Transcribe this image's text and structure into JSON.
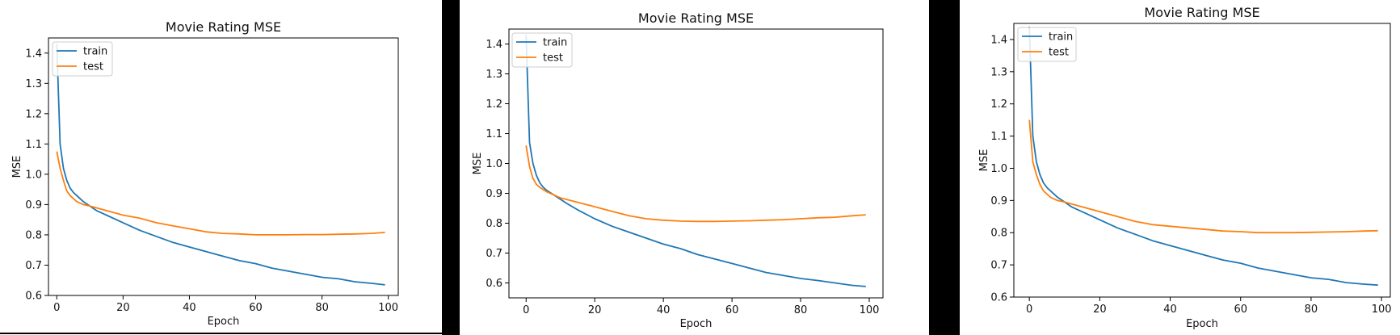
{
  "colors": {
    "train": "#1f77b4",
    "test": "#ff7f0e",
    "background": "#ffffff",
    "separator": "#000000"
  },
  "chart_data": [
    {
      "type": "line",
      "title": "Movie Rating MSE",
      "xlabel": "Epoch",
      "ylabel": "MSE",
      "xlim": [
        -2.5,
        103
      ],
      "ylim": [
        0.6,
        1.45
      ],
      "xticks": [
        0,
        20,
        40,
        60,
        80,
        100
      ],
      "xtick_labels": [
        "0",
        "20",
        "40",
        "60",
        "80",
        "100"
      ],
      "yticks": [
        0.6,
        0.7,
        0.8,
        0.9,
        1.0,
        1.1,
        1.2,
        1.3,
        1.4
      ],
      "ytick_labels": [
        "0.6",
        "0.7",
        "0.8",
        "0.9",
        "1.0",
        "1.1",
        "1.2",
        "1.3",
        "1.4"
      ],
      "legend": "upper left",
      "grid": false,
      "series": [
        {
          "name": "train",
          "color": "#1f77b4",
          "x": [
            0,
            1,
            2,
            3,
            4,
            5,
            6,
            8,
            10,
            12,
            15,
            20,
            25,
            30,
            35,
            40,
            45,
            50,
            55,
            60,
            65,
            70,
            75,
            80,
            85,
            90,
            95,
            99
          ],
          "y": [
            1.43,
            1.1,
            1.02,
            0.98,
            0.955,
            0.94,
            0.93,
            0.91,
            0.895,
            0.88,
            0.865,
            0.84,
            0.815,
            0.795,
            0.775,
            0.76,
            0.745,
            0.73,
            0.715,
            0.705,
            0.69,
            0.68,
            0.67,
            0.66,
            0.655,
            0.645,
            0.64,
            0.635
          ]
        },
        {
          "name": "test",
          "color": "#ff7f0e",
          "x": [
            0,
            1,
            2,
            3,
            4,
            6,
            8,
            10,
            15,
            20,
            25,
            30,
            35,
            40,
            45,
            50,
            55,
            60,
            65,
            70,
            75,
            80,
            85,
            90,
            95,
            99
          ],
          "y": [
            1.075,
            1.02,
            0.98,
            0.945,
            0.93,
            0.91,
            0.9,
            0.895,
            0.88,
            0.865,
            0.855,
            0.84,
            0.83,
            0.82,
            0.81,
            0.805,
            0.803,
            0.8,
            0.8,
            0.8,
            0.801,
            0.801,
            0.802,
            0.803,
            0.805,
            0.808
          ]
        }
      ]
    },
    {
      "type": "line",
      "title": "Movie Rating MSE",
      "xlabel": "Epoch",
      "ylabel": "MSE",
      "xlim": [
        -5,
        104
      ],
      "ylim": [
        0.55,
        1.45
      ],
      "xticks": [
        0,
        20,
        40,
        60,
        80,
        100
      ],
      "xtick_labels": [
        "0",
        "20",
        "40",
        "60",
        "80",
        "100"
      ],
      "yticks": [
        0.6,
        0.7,
        0.8,
        0.9,
        1.0,
        1.1,
        1.2,
        1.3,
        1.4
      ],
      "ytick_labels": [
        "0.6",
        "0.7",
        "0.8",
        "0.9",
        "1.0",
        "1.1",
        "1.2",
        "1.3",
        "1.4"
      ],
      "legend": "upper left",
      "grid": false,
      "series": [
        {
          "name": "train",
          "color": "#1f77b4",
          "x": [
            0,
            1,
            2,
            3,
            4,
            5,
            6,
            8,
            10,
            12,
            15,
            20,
            25,
            30,
            35,
            40,
            45,
            50,
            55,
            60,
            65,
            70,
            75,
            80,
            85,
            90,
            95,
            99
          ],
          "y": [
            1.43,
            1.07,
            1.0,
            0.96,
            0.935,
            0.92,
            0.91,
            0.895,
            0.88,
            0.865,
            0.845,
            0.815,
            0.79,
            0.77,
            0.75,
            0.73,
            0.715,
            0.695,
            0.68,
            0.665,
            0.65,
            0.635,
            0.625,
            0.615,
            0.608,
            0.6,
            0.592,
            0.588
          ]
        },
        {
          "name": "test",
          "color": "#ff7f0e",
          "x": [
            0,
            1,
            2,
            3,
            4,
            6,
            8,
            10,
            15,
            20,
            25,
            30,
            35,
            40,
            45,
            50,
            55,
            60,
            65,
            70,
            75,
            80,
            85,
            90,
            95,
            99
          ],
          "y": [
            1.06,
            0.99,
            0.95,
            0.93,
            0.92,
            0.905,
            0.895,
            0.885,
            0.87,
            0.855,
            0.84,
            0.825,
            0.815,
            0.81,
            0.807,
            0.806,
            0.806,
            0.807,
            0.808,
            0.81,
            0.812,
            0.815,
            0.818,
            0.82,
            0.825,
            0.828
          ]
        }
      ]
    },
    {
      "type": "line",
      "title": "Movie Rating MSE",
      "xlabel": "Epoch",
      "ylabel": "MSE",
      "xlim": [
        -4.4,
        102.5
      ],
      "ylim": [
        0.6,
        1.45
      ],
      "xticks": [
        0,
        20,
        40,
        60,
        80,
        100
      ],
      "xtick_labels": [
        "0",
        "20",
        "40",
        "60",
        "80",
        "100"
      ],
      "yticks": [
        0.6,
        0.7,
        0.8,
        0.9,
        1.0,
        1.1,
        1.2,
        1.3,
        1.4
      ],
      "ytick_labels": [
        "0.6",
        "0.7",
        "0.8",
        "0.9",
        "1.0",
        "1.1",
        "1.2",
        "1.3",
        "1.4"
      ],
      "legend": "upper left",
      "grid": false,
      "series": [
        {
          "name": "train",
          "color": "#1f77b4",
          "x": [
            0,
            1,
            2,
            3,
            4,
            5,
            6,
            8,
            10,
            12,
            15,
            20,
            25,
            30,
            35,
            40,
            45,
            50,
            55,
            60,
            65,
            70,
            75,
            80,
            85,
            90,
            95,
            99
          ],
          "y": [
            1.44,
            1.1,
            1.02,
            0.98,
            0.955,
            0.94,
            0.93,
            0.91,
            0.895,
            0.88,
            0.865,
            0.84,
            0.815,
            0.795,
            0.775,
            0.76,
            0.745,
            0.73,
            0.715,
            0.705,
            0.69,
            0.68,
            0.67,
            0.66,
            0.655,
            0.645,
            0.64,
            0.637
          ]
        },
        {
          "name": "test",
          "color": "#ff7f0e",
          "x": [
            0,
            1,
            2,
            3,
            4,
            6,
            8,
            10,
            15,
            20,
            25,
            30,
            35,
            40,
            45,
            50,
            55,
            60,
            65,
            70,
            75,
            80,
            85,
            90,
            95,
            99
          ],
          "y": [
            1.15,
            1.02,
            0.98,
            0.95,
            0.93,
            0.91,
            0.9,
            0.895,
            0.88,
            0.865,
            0.85,
            0.835,
            0.825,
            0.82,
            0.815,
            0.81,
            0.805,
            0.803,
            0.8,
            0.8,
            0.8,
            0.801,
            0.802,
            0.803,
            0.805,
            0.806
          ]
        }
      ]
    }
  ]
}
